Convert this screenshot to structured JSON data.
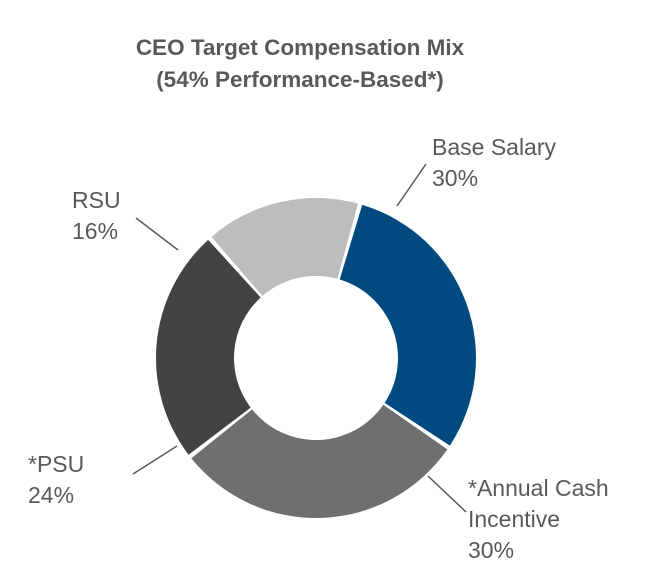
{
  "chart_data": {
    "type": "pie",
    "donut": true,
    "title": "CEO Target Compensation Mix",
    "subtitle": "(54% Performance-Based*)",
    "slices": [
      {
        "name": "Base Salary",
        "label_lines": [
          "Base Salary"
        ],
        "value": 30,
        "value_label": "30%",
        "color": "#004a80"
      },
      {
        "name": "*Annual Cash Incentive",
        "label_lines": [
          "*Annual Cash",
          "Incentive"
        ],
        "value": 30,
        "value_label": "30%",
        "color": "#6f6f6f"
      },
      {
        "name": "*PSU",
        "label_lines": [
          "*PSU"
        ],
        "value": 24,
        "value_label": "24%",
        "color": "#434343"
      },
      {
        "name": "RSU",
        "label_lines": [
          "RSU"
        ],
        "value": 16,
        "value_label": "16%",
        "color": "#bdbdbd"
      }
    ]
  }
}
